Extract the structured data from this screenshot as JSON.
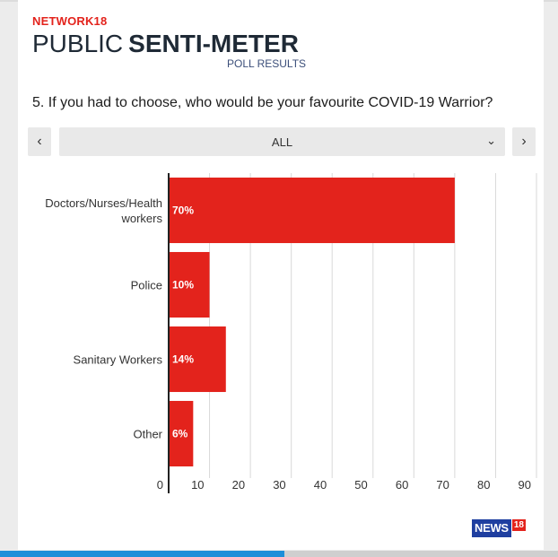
{
  "header": {
    "brand": "NETWORK18",
    "title_light": "PUBLIC",
    "title_bold": "SENTI-METER",
    "subtitle": "POLL RESULTS"
  },
  "question": "5. If you had to choose, who would be your favourite COVID-19 Warrior?",
  "filter": {
    "selected": "ALL",
    "prev_icon": "chevron-left-icon",
    "next_icon": "chevron-right-icon",
    "dropdown_icon": "chevron-down-icon"
  },
  "logo": {
    "text": "NEWS",
    "number": "18"
  },
  "progress": {
    "fraction": 0.51
  },
  "colors": {
    "bar": "#e3231c",
    "brand": "#e3231c",
    "grid": "#d9d9d9",
    "progress": "#1e8fd9"
  },
  "chart_data": {
    "type": "bar",
    "orientation": "horizontal",
    "categories": [
      [
        "Doctors/Nurses/Health",
        "workers"
      ],
      [
        "Police"
      ],
      [
        "Sanitary Workers"
      ],
      [
        "Other"
      ]
    ],
    "values": [
      70,
      10,
      14,
      6
    ],
    "value_labels": [
      "70%",
      "10%",
      "14%",
      "6%"
    ],
    "x_ticks": [
      "0",
      "10",
      "20",
      "30",
      "40",
      "50",
      "60",
      "70",
      "80",
      "90"
    ],
    "xlim": [
      0,
      90
    ],
    "grid": true
  }
}
